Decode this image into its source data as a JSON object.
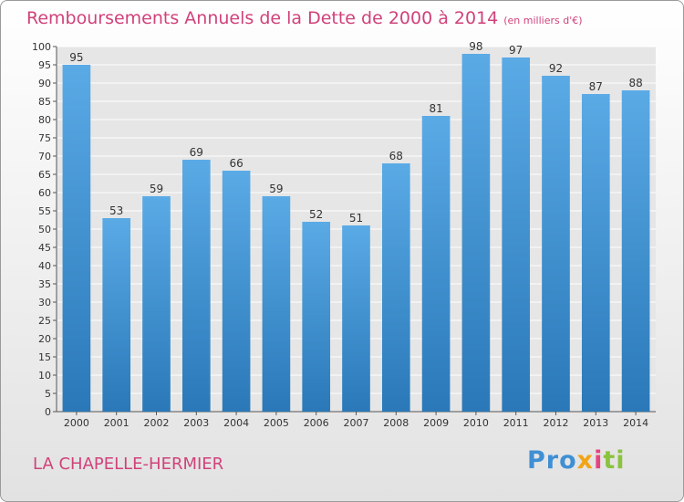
{
  "chart_data": {
    "type": "bar",
    "title": "Remboursements Annuels de la Dette de 2000 à 2014",
    "unit_label": "(en milliers d'€)",
    "categories": [
      "2000",
      "2001",
      "2002",
      "2003",
      "2004",
      "2005",
      "2006",
      "2007",
      "2008",
      "2009",
      "2010",
      "2011",
      "2012",
      "2013",
      "2014"
    ],
    "values": [
      95,
      53,
      59,
      69,
      66,
      59,
      52,
      51,
      68,
      81,
      98,
      97,
      92,
      87,
      88
    ],
    "ylim": [
      0,
      100
    ],
    "ytick_step": 5,
    "xlabel": "",
    "ylabel": "",
    "grid": true,
    "bar_color_top": "#5aaae6",
    "bar_color_bottom": "#2a78b8"
  },
  "footer": {
    "town": "LA CHAPELLE-HERMIER",
    "logo_parts": [
      "Pro",
      "x",
      "i",
      "ti"
    ]
  }
}
